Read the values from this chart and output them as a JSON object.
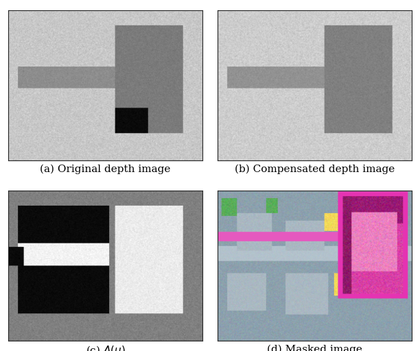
{
  "title": "",
  "captions": [
    "(a) Original depth image",
    "(b) Compensated depth image",
    "(c) $A(u)$",
    "(d) Masked image"
  ],
  "fig_width": 6.12,
  "fig_height": 5.12,
  "bg_color": "#ffffff",
  "caption_fontsize": 11
}
